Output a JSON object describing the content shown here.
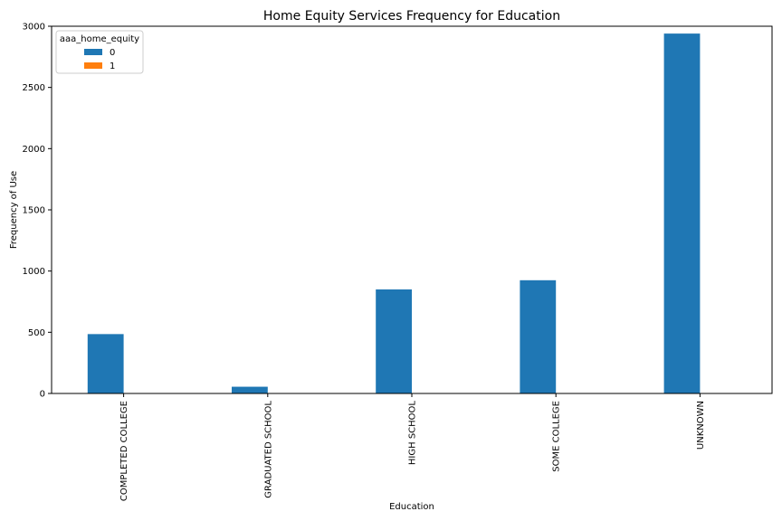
{
  "chart_data": {
    "type": "bar",
    "title": "Home Equity Services Frequency for Education",
    "xlabel": "Education",
    "ylabel": "Frequency of Use",
    "categories": [
      "COMPLETED COLLEGE",
      "GRADUATED SCHOOL",
      "HIGH SCHOOL",
      "SOME COLLEGE",
      "UNKNOWN"
    ],
    "series": [
      {
        "name": "0",
        "values": [
          485,
          55,
          850,
          925,
          2940
        ],
        "color": "#1f77b4"
      },
      {
        "name": "1",
        "values": [
          0,
          0,
          0,
          0,
          0
        ],
        "color": "#ff7f0e"
      }
    ],
    "ylim": [
      0,
      3000
    ],
    "yticks": [
      0,
      500,
      1000,
      1500,
      2000,
      2500,
      3000
    ],
    "legend": {
      "title": "aaa_home_equity",
      "placement": "top-left"
    },
    "grid": false
  }
}
